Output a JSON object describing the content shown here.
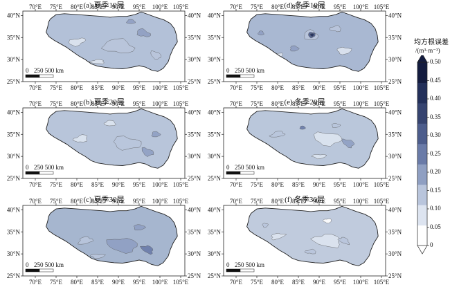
{
  "colorbar": {
    "title": "均方根误差",
    "unit": "/(m³·m⁻³)",
    "ticks": [
      "0.50",
      "0.45",
      "0.40",
      "0.35",
      "0.30",
      "0.25",
      "0.20",
      "0.15",
      "0.10",
      "0.05",
      "0"
    ],
    "colors": [
      "#ffffff",
      "#dde4f0",
      "#b9c5dc",
      "#8f9fc2",
      "#6a7ba8",
      "#4d5d8c",
      "#364470",
      "#23305a",
      "#141c3f"
    ]
  },
  "axes": {
    "x_ticks": [
      "70°E",
      "75°E",
      "80°E",
      "85°E",
      "90°E",
      "95°E",
      "100°E",
      "105°E"
    ],
    "y_left": [
      "40°N",
      "35°N",
      "30°N",
      "25°N"
    ],
    "y_right": [
      "40°N",
      "35°N",
      "30°N",
      "25°N"
    ]
  },
  "scalebar": {
    "zero": "0",
    "label": "250 500 km"
  },
  "panels": [
    {
      "id": "a",
      "title": "(a) 夏季10层",
      "fill": "#b3c1d8"
    },
    {
      "id": "d",
      "title": "(d) 冬季10层",
      "fill": "#a9b8d2"
    },
    {
      "id": "b",
      "title": "(b) 夏季20层",
      "fill": "#b8c5da"
    },
    {
      "id": "e",
      "title": "(e) 冬季20层",
      "fill": "#bac7db"
    },
    {
      "id": "c",
      "title": "(c) 夏季30层",
      "fill": "#a6b6cf"
    },
    {
      "id": "f",
      "title": "(f) 冬季30层",
      "fill": "#c0cbdd"
    }
  ]
}
